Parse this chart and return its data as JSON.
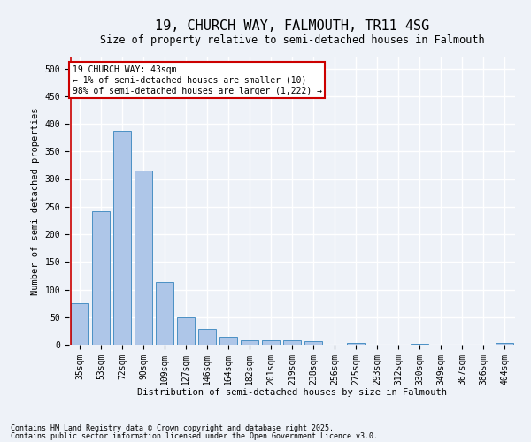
{
  "title1": "19, CHURCH WAY, FALMOUTH, TR11 4SG",
  "title2": "Size of property relative to semi-detached houses in Falmouth",
  "xlabel": "Distribution of semi-detached houses by size in Falmouth",
  "ylabel": "Number of semi-detached properties",
  "categories": [
    "35sqm",
    "53sqm",
    "72sqm",
    "90sqm",
    "109sqm",
    "127sqm",
    "146sqm",
    "164sqm",
    "182sqm",
    "201sqm",
    "219sqm",
    "238sqm",
    "256sqm",
    "275sqm",
    "293sqm",
    "312sqm",
    "330sqm",
    "349sqm",
    "367sqm",
    "386sqm",
    "404sqm"
  ],
  "values": [
    75,
    242,
    387,
    315,
    113,
    50,
    29,
    14,
    8,
    8,
    8,
    6,
    0,
    4,
    0,
    0,
    1,
    0,
    0,
    0,
    3
  ],
  "bar_color": "#aec6e8",
  "bar_edge_color": "#4a90c4",
  "highlight_bar_index": 0,
  "annotation_text": "19 CHURCH WAY: 43sqm\n← 1% of semi-detached houses are smaller (10)\n98% of semi-detached houses are larger (1,222) →",
  "annotation_box_color": "#ffffff",
  "annotation_edge_color": "#cc0000",
  "highlight_line_color": "#cc0000",
  "ylim": [
    0,
    520
  ],
  "yticks": [
    0,
    50,
    100,
    150,
    200,
    250,
    300,
    350,
    400,
    450,
    500
  ],
  "footer1": "Contains HM Land Registry data © Crown copyright and database right 2025.",
  "footer2": "Contains public sector information licensed under the Open Government Licence v3.0.",
  "background_color": "#eef2f8",
  "plot_background_color": "#eef2f8",
  "grid_color": "#ffffff",
  "title_fontsize": 11,
  "subtitle_fontsize": 8.5,
  "axis_label_fontsize": 7.5,
  "tick_fontsize": 7,
  "annotation_fontsize": 7,
  "footer_fontsize": 6
}
